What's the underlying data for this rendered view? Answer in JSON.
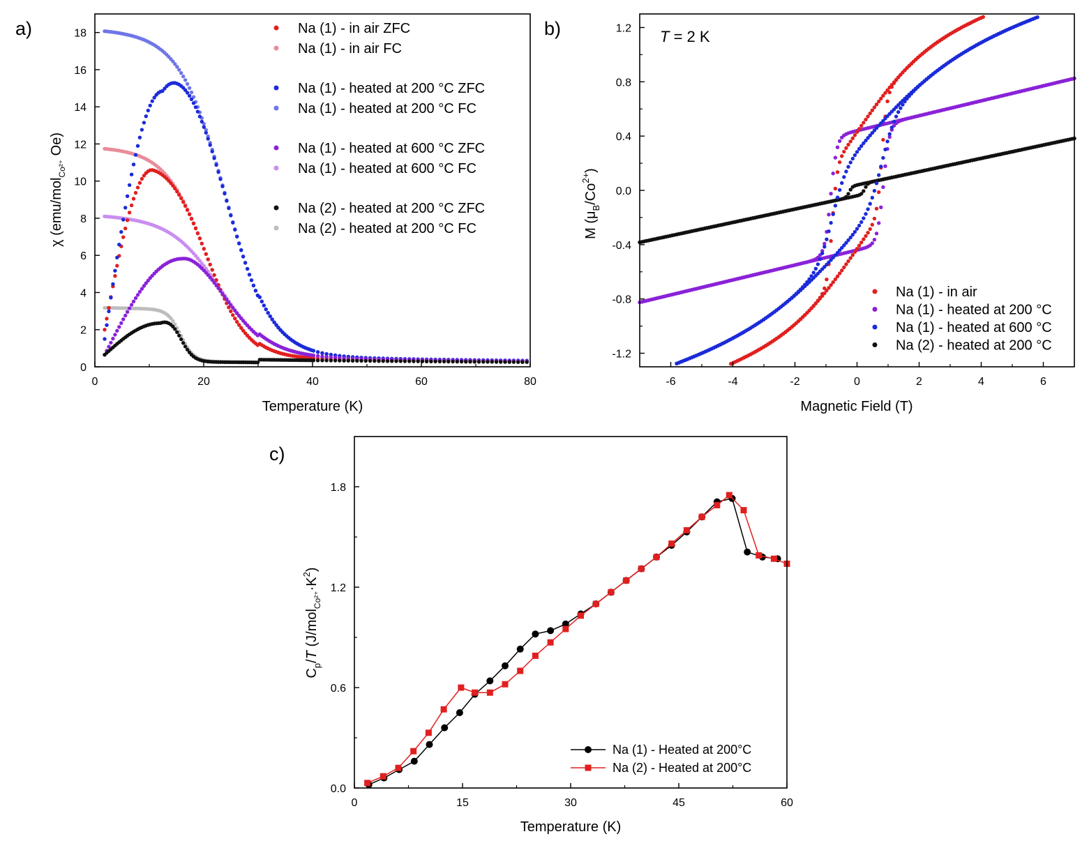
{
  "chart_data": [
    {
      "panel_label": "a)",
      "type": "scatter",
      "xlabel": "Temperature (K)",
      "ylabel": "χ (emu/mol_Co2+ Oe)",
      "ylabel_parts": {
        "a": "χ (emu/mol",
        "sub": "Co²⁺",
        "b": " Oe)"
      },
      "xlim": [
        0,
        80
      ],
      "ylim": [
        0,
        19
      ],
      "xticks": [
        0,
        20,
        40,
        60,
        80
      ],
      "yticks": [
        0,
        2,
        4,
        6,
        8,
        10,
        12,
        14,
        16,
        18
      ],
      "legend_position": "top-right",
      "grid": false,
      "series": [
        {
          "name": "Na (1) - in air ZFC",
          "color": "#e0201f",
          "model": {
            "kind": "zfc",
            "peak": 10.6,
            "tp": 10.5,
            "start": 2.0,
            "fc_plateau": 11.35,
            "fc_tmid": 20.5,
            "fc_w": 3.8,
            "fc_tail": 0.25
          }
        },
        {
          "name": "Na (1) - in air FC",
          "color": "#e98c9b",
          "model": {
            "kind": "fc",
            "plateau": 11.35,
            "tmid": 20.5,
            "w": 3.8,
            "tail": 0.25
          }
        },
        {
          "name": "Na (1) - heated at 200 °C ZFC",
          "color": "#1b2bd9",
          "model": {
            "kind": "zfc",
            "peak": 14.85,
            "tp": 12.5,
            "start": 1.5,
            "fc_plateau": 17.5,
            "fc_tmid": 24.0,
            "fc_w": 4.2,
            "fc_tail": 0.35
          }
        },
        {
          "name": "Na (1) - heated at 200 °C FC",
          "color": "#6f76e8",
          "model": {
            "kind": "fc",
            "plateau": 17.5,
            "tmid": 24.0,
            "w": 4.2,
            "tail": 0.35
          }
        },
        {
          "name": "Na (1) - heated at 600 °C ZFC",
          "color": "#8a22d8",
          "model": {
            "kind": "zfc",
            "peak": 5.82,
            "tp": 16.0,
            "start": 0.65,
            "fc_plateau": 7.6,
            "fc_tmid": 23.0,
            "fc_w": 4.5,
            "fc_tail": 0.3
          }
        },
        {
          "name": "Na (1) - heated at 600 °C FC",
          "color": "#c98ef0",
          "model": {
            "kind": "fc",
            "plateau": 7.6,
            "tmid": 23.0,
            "w": 4.5,
            "tail": 0.3
          }
        },
        {
          "name": "Na (2) - heated at 200 °C ZFC",
          "color": "#111111",
          "model": {
            "kind": "zfc",
            "peak": 2.35,
            "tp": 12.0,
            "start": 0.65,
            "fc_plateau": 2.8,
            "fc_tmid": 15.8,
            "fc_w": 1.2,
            "fc_tail": 0.2
          }
        },
        {
          "name": "Na (2) - heated at 200 °C FC",
          "color": "#bdbdbd",
          "model": {
            "kind": "fc",
            "plateau": 2.8,
            "tmid": 15.8,
            "w": 1.2,
            "tail": 0.2
          }
        }
      ]
    },
    {
      "panel_label": "b)",
      "type": "scatter",
      "annotation": {
        "italic": "T",
        "rest": " = 2 K"
      },
      "xlabel": "Magnetic Field (T)",
      "ylabel": "M (μB/Co2+)",
      "ylabel_parts": {
        "a": "M (μ",
        "sub": "B",
        "b": "/Co",
        "sup": "2+",
        "c": ")"
      },
      "xlim": [
        -7,
        7
      ],
      "ylim": [
        -1.3,
        1.3
      ],
      "xticks": [
        -6,
        -4,
        -2,
        0,
        2,
        4,
        6
      ],
      "yticks": [
        -1.2,
        -0.8,
        -0.4,
        0.0,
        0.4,
        0.8,
        1.2
      ],
      "ytick_labels": [
        "-1.2",
        "-0.8",
        "-0.4",
        "0.0",
        "0.4",
        "0.8",
        "1.2"
      ],
      "legend_position": "bottom-right",
      "grid": false,
      "series": [
        {
          "name": "Na (1) - in air",
          "color": "#e0201f",
          "model": {
            "ms": 0.43,
            "hc": 0.8,
            "w": 0.16,
            "slope": 0.08,
            "curv": 0.55,
            "hscale": 2.2
          }
        },
        {
          "name": "Na (1) - heated at 200 °C",
          "color": "#8a22d8",
          "model": {
            "ms": 0.44,
            "hc": 0.85,
            "w": 0.2,
            "slope": 0.055,
            "curv": 0.0,
            "hscale": 2.0
          }
        },
        {
          "name": "Na (1) - heated at 600 °C",
          "color": "#1b2bd9",
          "model": {
            "ms": 0.3,
            "hc": 0.8,
            "w": 0.45,
            "slope": 0.07,
            "curv": 0.6,
            "hscale": 3.2
          }
        },
        {
          "name": "Na (2) - heated at 200 °C",
          "color": "#111111",
          "model": {
            "ms": 0.04,
            "hc": 0.25,
            "w": 0.1,
            "slope": 0.049,
            "curv": 0.0,
            "hscale": 2.0
          }
        }
      ]
    },
    {
      "panel_label": "c)",
      "type": "line",
      "xlabel": "Temperature (K)",
      "ylabel": "Cp/T (J/mol_Co2+ K^2)",
      "ylabel_parts": {
        "a": "C",
        "sub1": "p",
        "b": "/",
        "italic": "T",
        "c": " (J/mol",
        "sub2": "Co²⁺",
        "d": "·K",
        "sup": "2",
        "e": ")"
      },
      "xlim": [
        0,
        60
      ],
      "ylim": [
        0,
        2.1
      ],
      "xticks": [
        0,
        15,
        30,
        45,
        60
      ],
      "yticks": [
        0.0,
        0.6,
        1.2,
        1.8
      ],
      "ytick_labels": [
        "0.0",
        "0.6",
        "1.2",
        "1.8"
      ],
      "legend_position": "bottom-right",
      "grid": false,
      "series": [
        {
          "name": "Na (1) - Heated at 200°C",
          "color": "#000000",
          "marker": "circle",
          "x": [
            2,
            4.1,
            6.2,
            8.3,
            10.4,
            12.5,
            14.6,
            16.7,
            18.8,
            20.9,
            23.0,
            25.1,
            27.2,
            29.3,
            31.4,
            33.5,
            35.6,
            37.7,
            39.8,
            41.9,
            44.0,
            46.1,
            48.2,
            50.3,
            52.4,
            54.5,
            56.6,
            58.7
          ],
          "y": [
            0.02,
            0.06,
            0.11,
            0.16,
            0.26,
            0.36,
            0.45,
            0.56,
            0.64,
            0.73,
            0.83,
            0.92,
            0.94,
            0.98,
            1.04,
            1.1,
            1.17,
            1.24,
            1.31,
            1.38,
            1.45,
            1.53,
            1.62,
            1.71,
            1.73,
            1.41,
            1.38,
            1.37
          ]
        },
        {
          "name": "Na (2) - Heated at 200°C",
          "color": "#e0201f",
          "marker": "square",
          "x": [
            1.8,
            4.0,
            6.1,
            8.2,
            10.3,
            12.4,
            14.8,
            16.7,
            18.8,
            20.9,
            23.0,
            25.1,
            27.2,
            29.3,
            31.4,
            33.5,
            35.6,
            37.7,
            39.8,
            41.9,
            44.0,
            46.1,
            48.2,
            50.3,
            52.0,
            54.0,
            56.1,
            58.2,
            60.0
          ],
          "y": [
            0.03,
            0.07,
            0.12,
            0.22,
            0.33,
            0.47,
            0.6,
            0.57,
            0.57,
            0.62,
            0.7,
            0.79,
            0.87,
            0.95,
            1.03,
            1.1,
            1.17,
            1.24,
            1.31,
            1.38,
            1.46,
            1.54,
            1.62,
            1.69,
            1.75,
            1.66,
            1.39,
            1.37,
            1.34
          ]
        }
      ]
    }
  ]
}
